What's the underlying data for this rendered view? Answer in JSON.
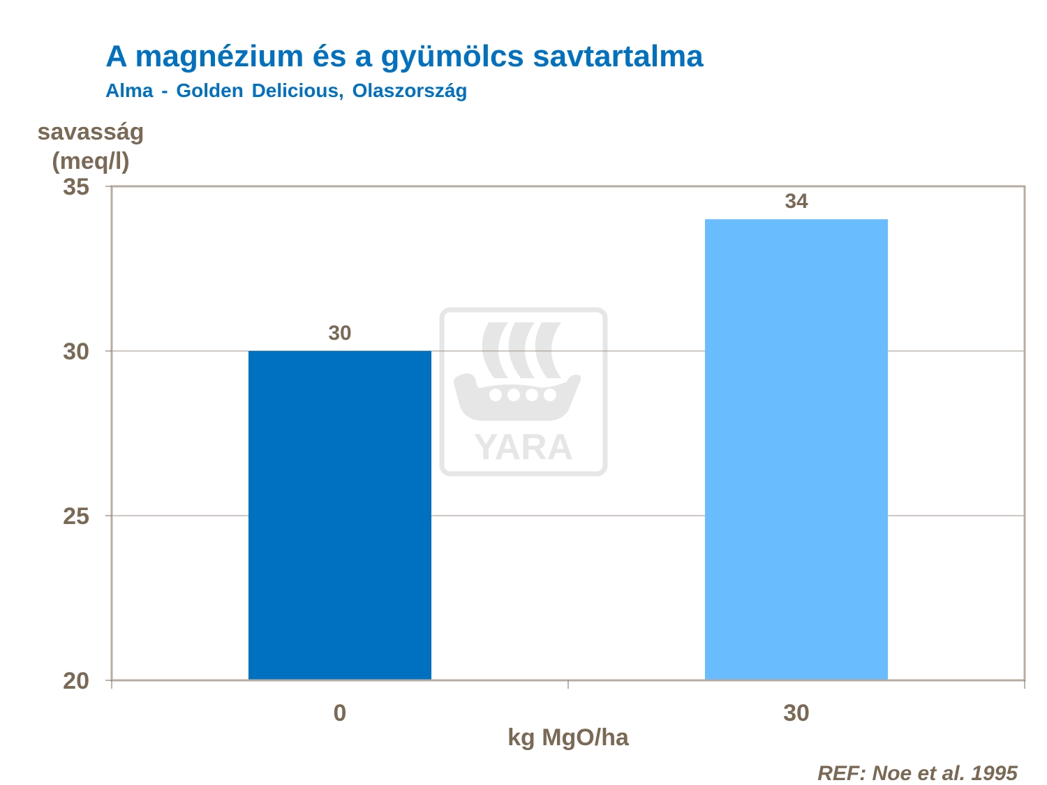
{
  "chart_data": {
    "type": "bar",
    "title": "A magnézium és a gyümölcs savtartalma",
    "subtitle": "Alma - Golden Delicious, Olaszország",
    "ylabel": "savasság (meq/l)",
    "ylabel_lines": [
      "savasság",
      "(meq/l)"
    ],
    "xlabel": "kg MgO/ha",
    "categories": [
      "0",
      "30"
    ],
    "values": [
      30,
      34
    ],
    "data_labels": [
      "30",
      "34"
    ],
    "ylim": [
      20,
      35
    ],
    "yticks": [
      20,
      25,
      30,
      35
    ],
    "grid": true,
    "bar_colors": [
      "#0070c0",
      "#69bdff"
    ],
    "legend": "none"
  },
  "reference": "REF: Noe et al. 1995",
  "watermark": {
    "icon": "yara-logo",
    "text": "YARA"
  }
}
